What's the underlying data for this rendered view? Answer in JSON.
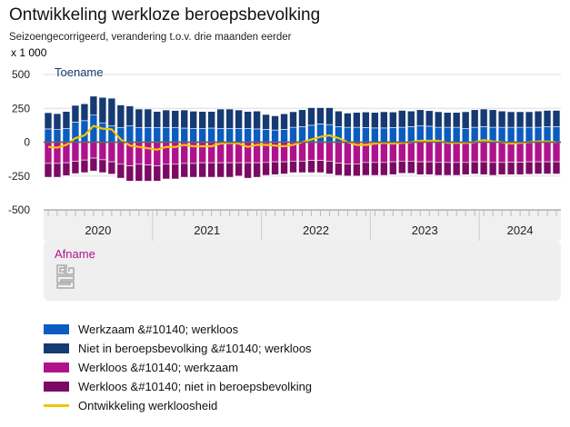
{
  "title": "Ontwikkeling werkloze beroepsbevolking",
  "subtitle": "Seizoengecorrigeerd, verandering t.o.v. drie maanden eerder",
  "unit": "x 1 000",
  "chart_data": {
    "type": "bar",
    "stacked": true,
    "frequency": "monthly",
    "start": "2020-01",
    "end": "2024-09",
    "ylim": [
      -500,
      500
    ],
    "yticks": [
      500,
      250,
      0,
      -250,
      -500
    ],
    "xtick_labels": [
      "2020",
      "2021",
      "2022",
      "2023",
      "2024"
    ],
    "annotations": {
      "top": "Toename",
      "bottom": "Afname"
    },
    "grid": true,
    "legend_position": "bottom",
    "series": [
      {
        "name": "Werkzaam &#10140; werkloos",
        "color": "#0a5cbf",
        "type": "bar",
        "values": [
          98,
          93,
          102,
          148,
          159,
          200,
          143,
          120,
          109,
          120,
          109,
          109,
          109,
          109,
          109,
          104,
          102,
          102,
          104,
          102,
          102,
          102,
          102,
          98,
          95,
          90,
          95,
          110,
          115,
          125,
          135,
          130,
          115,
          110,
          110,
          108,
          105,
          105,
          108,
          110,
          115,
          120,
          118,
          110,
          110,
          110,
          100,
          110,
          115,
          110,
          110,
          110,
          110,
          110,
          110,
          115,
          115
        ]
      },
      {
        "name": "Niet in beroepsbevolking &#10140; werkloos",
        "color": "#163a72",
        "type": "bar",
        "values": [
          120,
          118,
          125,
          124,
          125,
          140,
          188,
          205,
          166,
          148,
          136,
          136,
          118,
          129,
          125,
          134,
          127,
          125,
          123,
          143,
          143,
          136,
          125,
          132,
          110,
          105,
          115,
          115,
          125,
          130,
          120,
          125,
          115,
          105,
          110,
          115,
          115,
          120,
          115,
          125,
          115,
          120,
          115,
          115,
          110,
          110,
          125,
          130,
          130,
          130,
          120,
          115,
          115,
          115,
          120,
          120,
          120
        ]
      },
      {
        "name": "Werkloos &#10140; werkzaam",
        "color": "#b0128c",
        "type": "bar",
        "values": [
          -157,
          -157,
          -152,
          -141,
          -132,
          -118,
          -130,
          -145,
          -163,
          -175,
          -163,
          -168,
          -175,
          -163,
          -163,
          -157,
          -157,
          -152,
          -152,
          -152,
          -152,
          -152,
          -152,
          -152,
          -150,
          -145,
          -145,
          -140,
          -140,
          -135,
          -135,
          -140,
          -155,
          -160,
          -160,
          -150,
          -150,
          -150,
          -145,
          -140,
          -140,
          -145,
          -145,
          -150,
          -150,
          -150,
          -150,
          -145,
          -145,
          -150,
          -150,
          -148,
          -148,
          -145,
          -145,
          -145,
          -145
        ]
      },
      {
        "name": "Werkloos &#10140; niet in beroepsbevolking",
        "color": "#7a0a63",
        "type": "bar",
        "values": [
          -102,
          -102,
          -95,
          -91,
          -93,
          -95,
          -95,
          -91,
          -103,
          -113,
          -125,
          -120,
          -113,
          -109,
          -109,
          -102,
          -102,
          -107,
          -107,
          -107,
          -107,
          -98,
          -114,
          -107,
          -95,
          -95,
          -90,
          -85,
          -85,
          -90,
          -90,
          -95,
          -90,
          -90,
          -90,
          -95,
          -95,
          -95,
          -95,
          -90,
          -90,
          -95,
          -95,
          -95,
          -95,
          -95,
          -90,
          -90,
          -95,
          -95,
          -90,
          -92,
          -92,
          -92,
          -90,
          -90,
          -90
        ]
      },
      {
        "name": "Ontwikkeling werkloosheid",
        "color": "#f5c400",
        "type": "line",
        "values": [
          -35,
          -40,
          -20,
          30,
          50,
          120,
          100,
          95,
          20,
          -25,
          -35,
          -45,
          -55,
          -35,
          -35,
          -20,
          -30,
          -30,
          -30,
          -10,
          -5,
          -10,
          -35,
          -20,
          -20,
          -25,
          -30,
          -20,
          0,
          20,
          40,
          50,
          30,
          0,
          -20,
          -20,
          -10,
          -5,
          -10,
          -5,
          0,
          10,
          10,
          10,
          -5,
          -5,
          -5,
          0,
          15,
          5,
          0,
          -10,
          -5,
          0,
          5,
          5,
          0
        ]
      }
    ]
  }
}
